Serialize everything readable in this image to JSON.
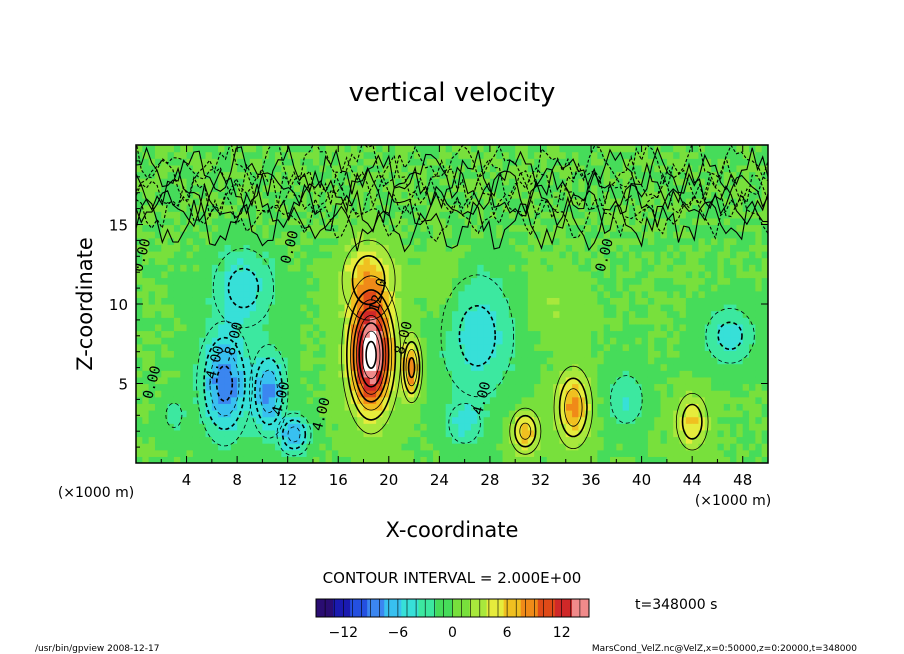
{
  "chart_data": {
    "type": "heatmap",
    "title": "vertical velocity",
    "xlabel": "X-coordinate",
    "ylabel": "Z-coordinate",
    "x_unit_left": "(×1000 m)",
    "x_unit_right": "(×1000 m)",
    "xlim": [
      0,
      50
    ],
    "ylim": [
      0,
      20
    ],
    "x_ticks": [
      4,
      8,
      12,
      16,
      20,
      24,
      28,
      32,
      36,
      40,
      44,
      48
    ],
    "y_ticks": [
      5,
      10,
      15
    ],
    "colorbar": {
      "min": -15,
      "max": 15,
      "ticks": [
        -12,
        -6,
        0,
        6,
        12
      ],
      "colors": [
        "#2a0d72",
        "#1a1ab0",
        "#2450e0",
        "#3b86f0",
        "#38c0f0",
        "#37e0d8",
        "#3ce8a0",
        "#46dc5a",
        "#78e03c",
        "#a8e83c",
        "#e6ec3c",
        "#f0c020",
        "#f08a18",
        "#e04a18",
        "#d02828",
        "#f08a8a"
      ]
    },
    "contour_interval": "CONTOUR INTERVAL = 2.000E+00",
    "time_label": "t=348000 s",
    "footer_left": "/usr/bin/gpview  2008-12-17",
    "footer_right": "MarsCond_VelZ.nc@VelZ,x=0:50000,z=0:20000,t=348000",
    "contour_labels": [
      {
        "text": "12.0",
        "x": 19.5,
        "z": 10.5
      },
      {
        "text": "8.00",
        "x": 21.5,
        "z": 7.8
      },
      {
        "text": "4.00",
        "x": 11.8,
        "z": 4.0
      },
      {
        "text": "4.00",
        "x": 15.0,
        "z": 3.0
      },
      {
        "text": "4.00",
        "x": 27.7,
        "z": 4.0
      },
      {
        "text": "0.00",
        "x": 1.6,
        "z": 5.0
      },
      {
        "text": "0.00",
        "x": 0.8,
        "z": 13.0
      },
      {
        "text": "0.00",
        "x": 12.5,
        "z": 13.5
      },
      {
        "text": "0.00",
        "x": 37.4,
        "z": 13.0
      },
      {
        "text": "-4.00",
        "x": 6.5,
        "z": 6.0
      },
      {
        "text": "-8.00",
        "x": 8.0,
        "z": 7.5
      }
    ],
    "features": [
      {
        "x": 18.6,
        "z": 6.8,
        "sx": 1.6,
        "sz": 3.4,
        "amp": 17
      },
      {
        "x": 18.4,
        "z": 11.5,
        "sx": 2.0,
        "sz": 2.4,
        "amp": 6
      },
      {
        "x": 21.8,
        "z": 6.0,
        "sx": 0.7,
        "sz": 1.8,
        "amp": 9
      },
      {
        "x": 7.0,
        "z": 5.0,
        "sx": 1.8,
        "sz": 3.2,
        "amp": -9
      },
      {
        "x": 10.5,
        "z": 4.5,
        "sx": 1.3,
        "sz": 2.5,
        "amp": -8
      },
      {
        "x": 12.5,
        "z": 1.8,
        "sx": 1.2,
        "sz": 1.2,
        "amp": -7
      },
      {
        "x": 8.5,
        "z": 11.0,
        "sx": 2.5,
        "sz": 2.6,
        "amp": -5
      },
      {
        "x": 27.0,
        "z": 8.0,
        "sx": 3.0,
        "sz": 4.0,
        "amp": -5
      },
      {
        "x": 26.0,
        "z": 2.5,
        "sx": 1.5,
        "sz": 1.5,
        "amp": -4
      },
      {
        "x": 3.0,
        "z": 3.0,
        "sx": 1.0,
        "sz": 1.2,
        "amp": -3
      },
      {
        "x": 30.8,
        "z": 2.0,
        "sx": 1.1,
        "sz": 1.3,
        "amp": 7
      },
      {
        "x": 34.6,
        "z": 3.5,
        "sx": 1.3,
        "sz": 2.2,
        "amp": 8
      },
      {
        "x": 44.0,
        "z": 2.6,
        "sx": 1.2,
        "sz": 1.7,
        "amp": 6
      },
      {
        "x": 38.8,
        "z": 4.0,
        "sx": 1.5,
        "sz": 1.8,
        "amp": -4
      },
      {
        "x": 47.0,
        "z": 8.0,
        "sx": 2.0,
        "sz": 1.8,
        "amp": -5
      },
      {
        "x": 33.0,
        "z": 10.0,
        "sx": 2.0,
        "sz": 2.0,
        "amp": 2
      },
      {
        "x": 24.5,
        "z": 11.0,
        "sx": 1.5,
        "sz": 3.0,
        "amp": 2
      }
    ]
  }
}
